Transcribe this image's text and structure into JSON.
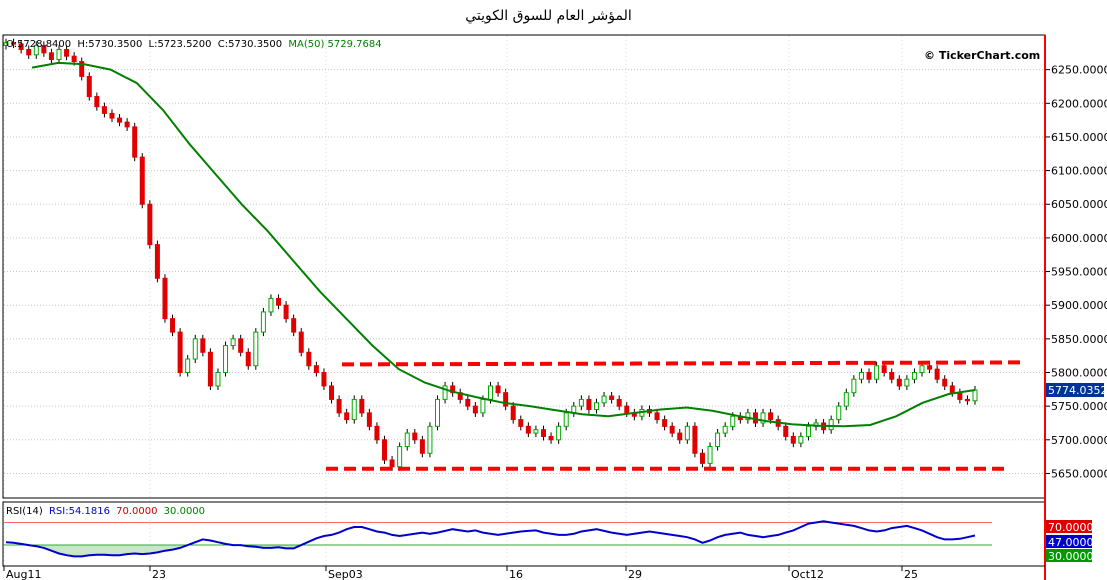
{
  "title": "المؤشر العام للسوق الكويتي",
  "watermark": "© TickerChart.com",
  "ohlc_info": {
    "open": "O:5728.8400",
    "high": "H:5730.3500",
    "low": "L:5723.5200",
    "close": "C:5730.3500",
    "ma": "MA(50) 5729.7684"
  },
  "rsi_info": {
    "label": "RSI(14)",
    "value": "RSI:54.1816",
    "upper": "70.0000",
    "lower": "30.0000"
  },
  "current_price_label": "5774.0352",
  "rsi_axis_labels": [
    "70.0000",
    "47.0000",
    "30.0000"
  ],
  "colors": {
    "up": "#00aa00",
    "down": "#e00000",
    "ma": "#008000",
    "rsi": "#0000cc",
    "resistance": "#ff0000",
    "axis": "#ff0000",
    "label_bg": "#003399"
  },
  "chart_data": [
    {
      "type": "candlestick",
      "series": [
        {
          "name": "MA(50)",
          "x": [
            0,
            5,
            10,
            15,
            20,
            25,
            30,
            35,
            40,
            45,
            50,
            55,
            60,
            65,
            70,
            75,
            80,
            85,
            90,
            95,
            100,
            105,
            110,
            115,
            120,
            125,
            130,
            135,
            140,
            145,
            150,
            155,
            160,
            165,
            170,
            175,
            180
          ],
          "values": [
            6253,
            6260,
            6258,
            6250,
            6230,
            6190,
            6140,
            6095,
            6050,
            6010,
            5965,
            5920,
            5880,
            5840,
            5805,
            5785,
            5772,
            5763,
            5755,
            5750,
            5744,
            5738,
            5735,
            5740,
            5745,
            5748,
            5743,
            5735,
            5728,
            5723,
            5721,
            5720,
            5722,
            5735,
            5755,
            5768,
            5774
          ]
        }
      ],
      "candles_close": [
        6290,
        6288,
        6280,
        6272,
        6286,
        6275,
        6265,
        6280,
        6270,
        6262,
        6240,
        6210,
        6195,
        6185,
        6178,
        6172,
        6165,
        6120,
        6050,
        5990,
        5940,
        5880,
        5860,
        5800,
        5820,
        5850,
        5830,
        5780,
        5800,
        5840,
        5850,
        5830,
        5810,
        5860,
        5890,
        5910,
        5900,
        5880,
        5860,
        5830,
        5810,
        5800,
        5780,
        5760,
        5740,
        5730,
        5760,
        5740,
        5720,
        5700,
        5670,
        5660,
        5690,
        5710,
        5700,
        5680,
        5720,
        5760,
        5780,
        5770,
        5760,
        5750,
        5740,
        5760,
        5780,
        5770,
        5750,
        5730,
        5720,
        5710,
        5715,
        5705,
        5700,
        5720,
        5740,
        5750,
        5760,
        5745,
        5755,
        5765,
        5760,
        5750,
        5740,
        5735,
        5745,
        5740,
        5730,
        5720,
        5710,
        5700,
        5720,
        5680,
        5665,
        5690,
        5710,
        5720,
        5735,
        5730,
        5740,
        5725,
        5740,
        5730,
        5720,
        5705,
        5695,
        5705,
        5720,
        5725,
        5715,
        5730,
        5750,
        5770,
        5790,
        5800,
        5790,
        5810,
        5800,
        5790,
        5780,
        5790,
        5800,
        5810,
        5805,
        5790,
        5780,
        5770,
        5760,
        5758,
        5774
      ],
      "x_ticks": [
        "Aug11",
        "23",
        "Sep03",
        "16",
        "29",
        "Oct12",
        "25"
      ],
      "y_ticks": [
        "6250.0000",
        "6200.0000",
        "6150.0000",
        "6100.0000",
        "6050.0000",
        "6000.0000",
        "5950.0000",
        "5900.0000",
        "5850.0000",
        "5800.0000",
        "5750.0000",
        "5700.0000",
        "5650.0000"
      ],
      "ylim": [
        5615,
        6300
      ],
      "resistance": 5812,
      "support": 5657
    },
    {
      "type": "line",
      "series": [
        {
          "name": "RSI(14)",
          "values": [
            35,
            34,
            32,
            30,
            28,
            25,
            20,
            15,
            12,
            10,
            10,
            12,
            13,
            13,
            12,
            12,
            14,
            15,
            14,
            15,
            17,
            20,
            22,
            25,
            30,
            35,
            40,
            38,
            35,
            32,
            30,
            30,
            28,
            27,
            25,
            25,
            26,
            24,
            24,
            30,
            36,
            42,
            46,
            48,
            52,
            58,
            62,
            62,
            58,
            54,
            52,
            48,
            46,
            48,
            50,
            52,
            50,
            52,
            55,
            58,
            56,
            54,
            56,
            52,
            50,
            48,
            50,
            52,
            54,
            55,
            56,
            52,
            50,
            48,
            48,
            50,
            54,
            56,
            58,
            55,
            52,
            50,
            48,
            50,
            52,
            54,
            52,
            50,
            48,
            46,
            44,
            40,
            34,
            38,
            44,
            48,
            50,
            52,
            48,
            46,
            44,
            46,
            48,
            52,
            56,
            62,
            68,
            70,
            72,
            70,
            68,
            66,
            64,
            60,
            56,
            54,
            56,
            60,
            62,
            64,
            60,
            56,
            50,
            44,
            40,
            40,
            41,
            44,
            47
          ]
        }
      ],
      "ylim": [
        0,
        85
      ],
      "bands": [
        70,
        30
      ]
    }
  ]
}
